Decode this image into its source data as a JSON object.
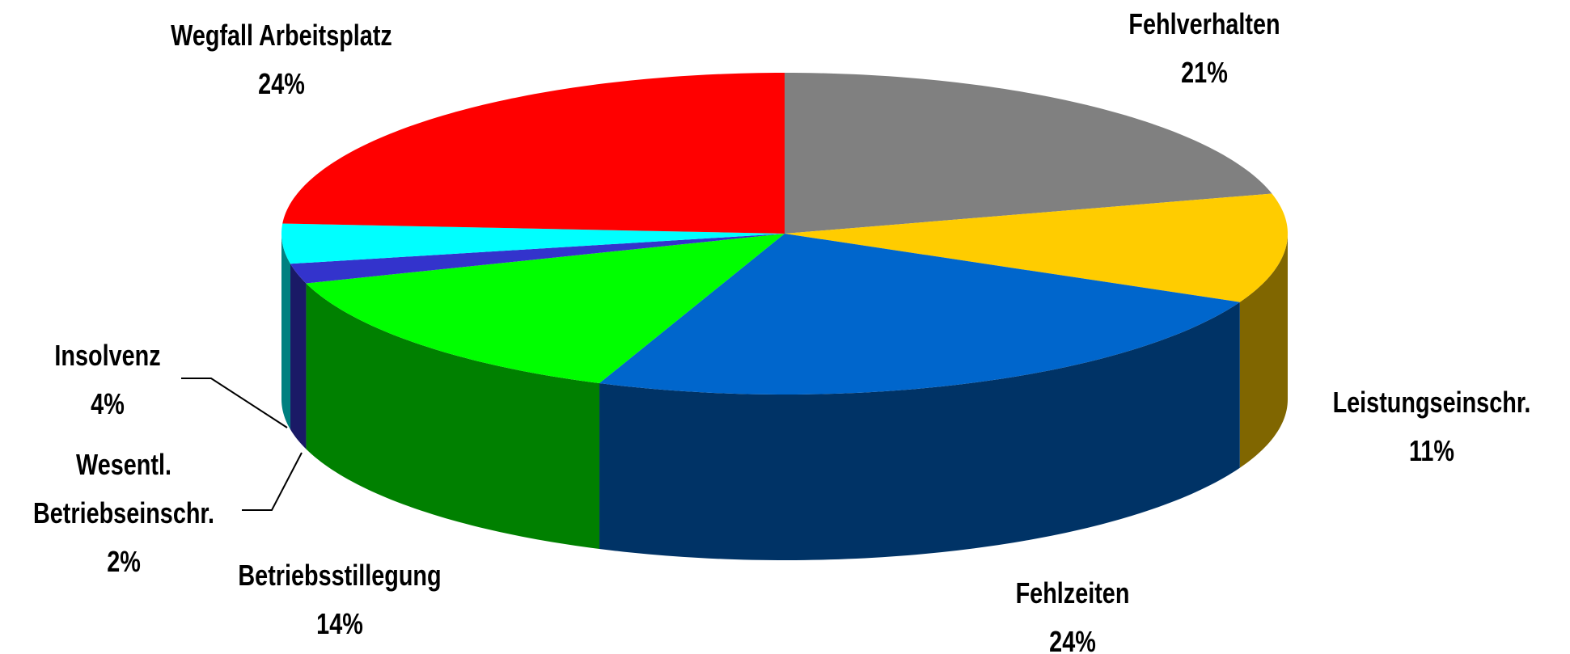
{
  "chart_data": {
    "type": "pie",
    "categories": [
      "Fehlverhalten",
      "Leistungseinschr.",
      "Fehlzeiten",
      "Betriebsstillegung",
      "Wesentl. Betriebseinschr.",
      "Insolvenz",
      "Wegfall Arbeitsplatz"
    ],
    "values": [
      21,
      11,
      24,
      14,
      2,
      4,
      24
    ],
    "value_labels": [
      "21%",
      "11%",
      "24%",
      "14%",
      "2%",
      "4%",
      "24%"
    ],
    "colors": [
      "#808080",
      "#ffcc00",
      "#0066cc",
      "#00ff00",
      "#3333cc",
      "#00ffff",
      "#ff0000"
    ]
  }
}
